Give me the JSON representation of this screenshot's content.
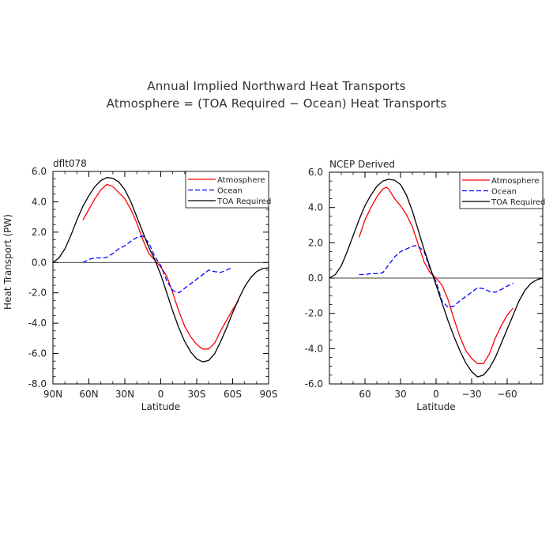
{
  "title": "Annual Implied Northward Heat Transports",
  "subtitle": "Atmosphere = (TOA Required − Ocean) Heat Transports",
  "colors": {
    "atmosphere": "#ff0000",
    "ocean": "#0000ff",
    "toa": "#000000",
    "zero_line": "#000000"
  },
  "chart_data": [
    {
      "type": "line",
      "panel_label": "dflt078",
      "xlabel": "Latitude",
      "ylabel": "Heat Transport (PW)",
      "x_orientation": "north-to-south",
      "xlim": [
        90,
        -90
      ],
      "ylim": [
        -8,
        6
      ],
      "x_ticks": [
        {
          "value": 90,
          "label": "90N"
        },
        {
          "value": 60,
          "label": "60N"
        },
        {
          "value": 30,
          "label": "30N"
        },
        {
          "value": 0,
          "label": "0"
        },
        {
          "value": -30,
          "label": "30S"
        },
        {
          "value": -60,
          "label": "60S"
        },
        {
          "value": -90,
          "label": "90S"
        }
      ],
      "y_ticks": [
        {
          "value": 6,
          "label": "6.0"
        },
        {
          "value": 4,
          "label": "4.0"
        },
        {
          "value": 2,
          "label": "2.0"
        },
        {
          "value": 0,
          "label": "0.0"
        },
        {
          "value": -2,
          "label": "-2.0"
        },
        {
          "value": -4,
          "label": "-4.0"
        },
        {
          "value": -6,
          "label": "-6.0"
        },
        {
          "value": -8,
          "label": "-8.0"
        }
      ],
      "zero_line": true,
      "legend_position": "top-right",
      "series": [
        {
          "name": "Atmosphere",
          "style": "solid",
          "color": "#ff0000",
          "points": [
            [
              65,
              2.8
            ],
            [
              60,
              3.5
            ],
            [
              55,
              4.2
            ],
            [
              50,
              4.8
            ],
            [
              45,
              5.15
            ],
            [
              40,
              5.0
            ],
            [
              35,
              4.6
            ],
            [
              30,
              4.2
            ],
            [
              25,
              3.5
            ],
            [
              20,
              2.6
            ],
            [
              15,
              1.5
            ],
            [
              10,
              0.6
            ],
            [
              5,
              0.15
            ],
            [
              0,
              -0.3
            ],
            [
              -5,
              -0.9
            ],
            [
              -10,
              -2.0
            ],
            [
              -15,
              -3.2
            ],
            [
              -20,
              -4.2
            ],
            [
              -25,
              -4.9
            ],
            [
              -30,
              -5.4
            ],
            [
              -35,
              -5.7
            ],
            [
              -40,
              -5.7
            ],
            [
              -45,
              -5.3
            ],
            [
              -50,
              -4.5
            ],
            [
              -55,
              -3.8
            ],
            [
              -60,
              -3.1
            ],
            [
              -65,
              -2.5
            ]
          ]
        },
        {
          "name": "Ocean",
          "style": "dashed",
          "color": "#0000ff",
          "points": [
            [
              65,
              0.0
            ],
            [
              60,
              0.2
            ],
            [
              55,
              0.3
            ],
            [
              50,
              0.3
            ],
            [
              45,
              0.35
            ],
            [
              40,
              0.6
            ],
            [
              35,
              0.9
            ],
            [
              30,
              1.1
            ],
            [
              25,
              1.4
            ],
            [
              20,
              1.65
            ],
            [
              15,
              1.75
            ],
            [
              10,
              1.3
            ],
            [
              5,
              0.4
            ],
            [
              0,
              -0.2
            ],
            [
              -5,
              -1.2
            ],
            [
              -10,
              -1.85
            ],
            [
              -15,
              -2.0
            ],
            [
              -20,
              -1.7
            ],
            [
              -25,
              -1.4
            ],
            [
              -30,
              -1.1
            ],
            [
              -35,
              -0.8
            ],
            [
              -40,
              -0.5
            ],
            [
              -45,
              -0.6
            ],
            [
              -50,
              -0.65
            ],
            [
              -55,
              -0.5
            ],
            [
              -60,
              -0.3
            ]
          ]
        },
        {
          "name": "TOA Required",
          "style": "solid",
          "color": "#000000",
          "points": [
            [
              90,
              0.0
            ],
            [
              85,
              0.3
            ],
            [
              80,
              0.9
            ],
            [
              75,
              1.8
            ],
            [
              70,
              2.8
            ],
            [
              65,
              3.7
            ],
            [
              60,
              4.4
            ],
            [
              55,
              5.0
            ],
            [
              50,
              5.4
            ],
            [
              45,
              5.6
            ],
            [
              40,
              5.55
            ],
            [
              35,
              5.3
            ],
            [
              30,
              4.8
            ],
            [
              25,
              4.0
            ],
            [
              20,
              3.0
            ],
            [
              15,
              2.0
            ],
            [
              10,
              1.0
            ],
            [
              5,
              0.2
            ],
            [
              0,
              -0.8
            ],
            [
              -5,
              -2.0
            ],
            [
              -10,
              -3.2
            ],
            [
              -15,
              -4.3
            ],
            [
              -20,
              -5.2
            ],
            [
              -25,
              -5.9
            ],
            [
              -30,
              -6.35
            ],
            [
              -35,
              -6.55
            ],
            [
              -40,
              -6.45
            ],
            [
              -45,
              -6.0
            ],
            [
              -50,
              -5.2
            ],
            [
              -55,
              -4.3
            ],
            [
              -60,
              -3.3
            ],
            [
              -65,
              -2.4
            ],
            [
              -70,
              -1.6
            ],
            [
              -75,
              -1.0
            ],
            [
              -80,
              -0.6
            ],
            [
              -85,
              -0.4
            ],
            [
              -90,
              -0.35
            ]
          ]
        }
      ]
    },
    {
      "type": "line",
      "panel_label": "NCEP Derived",
      "xlabel": "Latitude",
      "ylabel": "",
      "x_orientation": "north-to-south",
      "xlim": [
        90,
        -90
      ],
      "ylim": [
        -6,
        6
      ],
      "x_ticks": [
        {
          "value": 60,
          "label": "60"
        },
        {
          "value": 30,
          "label": "30"
        },
        {
          "value": 0,
          "label": "0"
        },
        {
          "value": -30,
          "label": "−30"
        },
        {
          "value": -60,
          "label": "−60"
        }
      ],
      "y_ticks": [
        {
          "value": 6,
          "label": "6.0"
        },
        {
          "value": 4,
          "label": "4.0"
        },
        {
          "value": 2,
          "label": "2.0"
        },
        {
          "value": 0,
          "label": "0.0"
        },
        {
          "value": -2,
          "label": "-2.0"
        },
        {
          "value": -4,
          "label": "-4.0"
        },
        {
          "value": -6,
          "label": "-6.0"
        }
      ],
      "zero_line": true,
      "legend_position": "top-right",
      "series": [
        {
          "name": "Atmosphere",
          "style": "solid",
          "color": "#ff0000",
          "points": [
            [
              65,
              2.3
            ],
            [
              60,
              3.3
            ],
            [
              55,
              4.0
            ],
            [
              50,
              4.6
            ],
            [
              45,
              5.05
            ],
            [
              42,
              5.15
            ],
            [
              40,
              5.05
            ],
            [
              35,
              4.5
            ],
            [
              30,
              4.1
            ],
            [
              25,
              3.6
            ],
            [
              20,
              2.9
            ],
            [
              15,
              1.9
            ],
            [
              10,
              0.9
            ],
            [
              5,
              0.3
            ],
            [
              0,
              0.0
            ],
            [
              -5,
              -0.4
            ],
            [
              -10,
              -1.2
            ],
            [
              -15,
              -2.3
            ],
            [
              -20,
              -3.3
            ],
            [
              -25,
              -4.1
            ],
            [
              -30,
              -4.55
            ],
            [
              -35,
              -4.85
            ],
            [
              -40,
              -4.85
            ],
            [
              -45,
              -4.3
            ],
            [
              -50,
              -3.4
            ],
            [
              -55,
              -2.7
            ],
            [
              -60,
              -2.1
            ],
            [
              -65,
              -1.7
            ]
          ]
        },
        {
          "name": "Ocean",
          "style": "dashed",
          "color": "#0000ff",
          "points": [
            [
              65,
              0.2
            ],
            [
              60,
              0.2
            ],
            [
              55,
              0.25
            ],
            [
              50,
              0.25
            ],
            [
              45,
              0.3
            ],
            [
              40,
              0.75
            ],
            [
              35,
              1.2
            ],
            [
              30,
              1.5
            ],
            [
              25,
              1.65
            ],
            [
              20,
              1.8
            ],
            [
              17,
              1.85
            ],
            [
              15,
              1.8
            ],
            [
              10,
              1.5
            ],
            [
              5,
              0.5
            ],
            [
              0,
              -0.2
            ],
            [
              -5,
              -1.3
            ],
            [
              -10,
              -1.65
            ],
            [
              -15,
              -1.6
            ],
            [
              -20,
              -1.3
            ],
            [
              -25,
              -1.05
            ],
            [
              -30,
              -0.8
            ],
            [
              -35,
              -0.55
            ],
            [
              -40,
              -0.6
            ],
            [
              -45,
              -0.75
            ],
            [
              -50,
              -0.8
            ],
            [
              -55,
              -0.65
            ],
            [
              -60,
              -0.45
            ],
            [
              -65,
              -0.3
            ]
          ]
        },
        {
          "name": "TOA Required",
          "style": "solid",
          "color": "#000000",
          "points": [
            [
              90,
              0.0
            ],
            [
              85,
              0.2
            ],
            [
              80,
              0.7
            ],
            [
              75,
              1.5
            ],
            [
              70,
              2.4
            ],
            [
              65,
              3.3
            ],
            [
              60,
              4.1
            ],
            [
              55,
              4.7
            ],
            [
              50,
              5.2
            ],
            [
              45,
              5.5
            ],
            [
              40,
              5.6
            ],
            [
              35,
              5.55
            ],
            [
              30,
              5.3
            ],
            [
              25,
              4.7
            ],
            [
              20,
              3.8
            ],
            [
              15,
              2.7
            ],
            [
              10,
              1.6
            ],
            [
              5,
              0.6
            ],
            [
              0,
              -0.4
            ],
            [
              -5,
              -1.4
            ],
            [
              -10,
              -2.4
            ],
            [
              -15,
              -3.3
            ],
            [
              -20,
              -4.1
            ],
            [
              -25,
              -4.8
            ],
            [
              -30,
              -5.3
            ],
            [
              -35,
              -5.6
            ],
            [
              -40,
              -5.5
            ],
            [
              -45,
              -5.1
            ],
            [
              -50,
              -4.5
            ],
            [
              -55,
              -3.7
            ],
            [
              -60,
              -2.9
            ],
            [
              -65,
              -2.1
            ],
            [
              -70,
              -1.3
            ],
            [
              -75,
              -0.7
            ],
            [
              -80,
              -0.3
            ],
            [
              -85,
              -0.1
            ],
            [
              -90,
              0.0
            ]
          ]
        }
      ]
    }
  ]
}
